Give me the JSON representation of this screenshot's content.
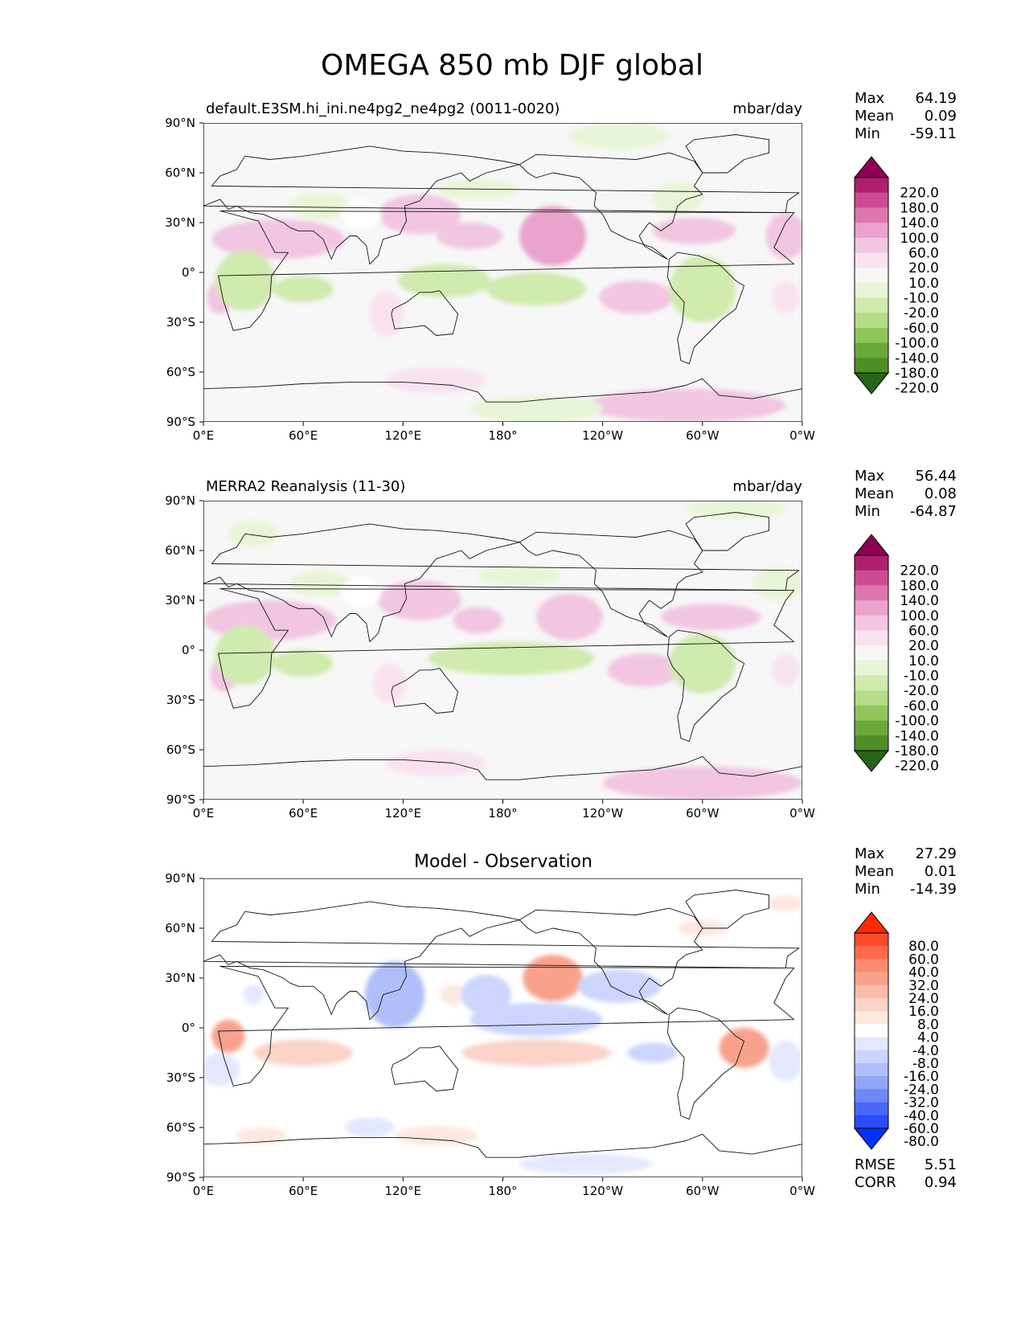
{
  "title": "OMEGA 850 mb DJF global",
  "x_ticks": [
    "0°E",
    "60°E",
    "120°E",
    "180°",
    "120°W",
    "60°W",
    "0°W"
  ],
  "y_ticks": [
    "90°N",
    "60°N",
    "30°N",
    "0°",
    "30°S",
    "60°S",
    "90°S"
  ],
  "panels": [
    {
      "id": "model",
      "left_title": "default.E3SM.hi_ini.ne4pg2_ne4pg2 (0011-0020)",
      "center_title": "",
      "units": "mbar/day",
      "stats": [
        {
          "label": "Max",
          "value": "64.19"
        },
        {
          "label": "Mean",
          "value": "0.09"
        },
        {
          "label": "Min",
          "value": "-59.11"
        }
      ],
      "colorbar": {
        "labels": [
          "220.0",
          "180.0",
          "140.0",
          "100.0",
          "60.0",
          "20.0",
          "10.0",
          "-10.0",
          "-20.0",
          "-60.0",
          "-100.0",
          "-140.0",
          "-180.0",
          "-220.0"
        ],
        "colors": [
          "#8e0152",
          "#b01f6e",
          "#cc4c93",
          "#de77ae",
          "#eaa3cc",
          "#f2c6e2",
          "#f9e2f0",
          "#f7f7f7",
          "#e8f5d6",
          "#cfebae",
          "#b5dd87",
          "#8fc55b",
          "#6aa83b",
          "#4d8f26",
          "#276419"
        ]
      },
      "blobs": [
        {
          "lon": 45,
          "lat": 20,
          "rx": 40,
          "ry": 12,
          "v": "pos2"
        },
        {
          "lon": 130,
          "lat": 35,
          "rx": 25,
          "ry": 12,
          "v": "pos2"
        },
        {
          "lon": 160,
          "lat": 22,
          "rx": 20,
          "ry": 8,
          "v": "pos2"
        },
        {
          "lon": 210,
          "lat": 22,
          "rx": 20,
          "ry": 18,
          "v": "pos3"
        },
        {
          "lon": 295,
          "lat": 25,
          "rx": 25,
          "ry": 8,
          "v": "pos2"
        },
        {
          "lon": 350,
          "lat": 22,
          "rx": 12,
          "ry": 14,
          "v": "pos2"
        },
        {
          "lon": 10,
          "lat": -15,
          "rx": 8,
          "ry": 10,
          "v": "pos2"
        },
        {
          "lon": 110,
          "lat": -25,
          "rx": 10,
          "ry": 14,
          "v": "pos1"
        },
        {
          "lon": 260,
          "lat": -15,
          "rx": 22,
          "ry": 10,
          "v": "pos2"
        },
        {
          "lon": 350,
          "lat": -15,
          "rx": 8,
          "ry": 10,
          "v": "pos1"
        },
        {
          "lon": 290,
          "lat": -80,
          "rx": 60,
          "ry": 10,
          "v": "pos2"
        },
        {
          "lon": 140,
          "lat": -65,
          "rx": 30,
          "ry": 8,
          "v": "pos1"
        },
        {
          "lon": 25,
          "lat": -5,
          "rx": 18,
          "ry": 18,
          "v": "neg2"
        },
        {
          "lon": 60,
          "lat": -10,
          "rx": 18,
          "ry": 8,
          "v": "neg2"
        },
        {
          "lon": 145,
          "lat": -5,
          "rx": 28,
          "ry": 10,
          "v": "neg2"
        },
        {
          "lon": 200,
          "lat": -10,
          "rx": 30,
          "ry": 10,
          "v": "neg2"
        },
        {
          "lon": 300,
          "lat": -10,
          "rx": 20,
          "ry": 20,
          "v": "neg2"
        },
        {
          "lon": 70,
          "lat": 40,
          "rx": 18,
          "ry": 8,
          "v": "neg1"
        },
        {
          "lon": 165,
          "lat": 50,
          "rx": 25,
          "ry": 6,
          "v": "neg1"
        },
        {
          "lon": 285,
          "lat": 45,
          "rx": 15,
          "ry": 10,
          "v": "neg1"
        },
        {
          "lon": 250,
          "lat": 82,
          "rx": 30,
          "ry": 8,
          "v": "neg1"
        },
        {
          "lon": 200,
          "lat": -82,
          "rx": 40,
          "ry": 8,
          "v": "neg1"
        },
        {
          "lon": 95,
          "lat": 35,
          "rx": 12,
          "ry": 9,
          "v": "mask"
        }
      ]
    },
    {
      "id": "obs",
      "left_title": "MERRA2 Reanalysis (11-30)",
      "center_title": "",
      "units": "mbar/day",
      "stats": [
        {
          "label": "Max",
          "value": "56.44"
        },
        {
          "label": "Mean",
          "value": "0.08"
        },
        {
          "label": "Min",
          "value": "-64.87"
        }
      ],
      "colorbar": {
        "labels": [
          "220.0",
          "180.0",
          "140.0",
          "100.0",
          "60.0",
          "20.0",
          "10.0",
          "-10.0",
          "-20.0",
          "-60.0",
          "-100.0",
          "-140.0",
          "-180.0",
          "-220.0"
        ],
        "colors": [
          "#8e0152",
          "#b01f6e",
          "#cc4c93",
          "#de77ae",
          "#eaa3cc",
          "#f2c6e2",
          "#f9e2f0",
          "#f7f7f7",
          "#e8f5d6",
          "#cfebae",
          "#b5dd87",
          "#8fc55b",
          "#6aa83b",
          "#4d8f26",
          "#276419"
        ]
      },
      "blobs": [
        {
          "lon": 40,
          "lat": 18,
          "rx": 40,
          "ry": 12,
          "v": "pos2"
        },
        {
          "lon": 130,
          "lat": 30,
          "rx": 25,
          "ry": 12,
          "v": "pos2"
        },
        {
          "lon": 165,
          "lat": 18,
          "rx": 15,
          "ry": 8,
          "v": "pos2"
        },
        {
          "lon": 220,
          "lat": 20,
          "rx": 20,
          "ry": 14,
          "v": "pos2"
        },
        {
          "lon": 305,
          "lat": 20,
          "rx": 30,
          "ry": 8,
          "v": "pos2"
        },
        {
          "lon": 12,
          "lat": -15,
          "rx": 8,
          "ry": 10,
          "v": "pos2"
        },
        {
          "lon": 112,
          "lat": -20,
          "rx": 10,
          "ry": 12,
          "v": "pos1"
        },
        {
          "lon": 265,
          "lat": -12,
          "rx": 22,
          "ry": 10,
          "v": "pos2"
        },
        {
          "lon": 350,
          "lat": -12,
          "rx": 8,
          "ry": 10,
          "v": "pos1"
        },
        {
          "lon": 300,
          "lat": -80,
          "rx": 60,
          "ry": 10,
          "v": "pos2"
        },
        {
          "lon": 140,
          "lat": -68,
          "rx": 30,
          "ry": 8,
          "v": "pos1"
        },
        {
          "lon": 25,
          "lat": -3,
          "rx": 18,
          "ry": 18,
          "v": "neg2"
        },
        {
          "lon": 60,
          "lat": -8,
          "rx": 18,
          "ry": 8,
          "v": "neg2"
        },
        {
          "lon": 185,
          "lat": -5,
          "rx": 50,
          "ry": 10,
          "v": "neg2"
        },
        {
          "lon": 300,
          "lat": -8,
          "rx": 20,
          "ry": 18,
          "v": "neg2"
        },
        {
          "lon": 70,
          "lat": 40,
          "rx": 18,
          "ry": 8,
          "v": "neg1"
        },
        {
          "lon": 190,
          "lat": 45,
          "rx": 25,
          "ry": 6,
          "v": "neg1"
        },
        {
          "lon": 345,
          "lat": 40,
          "rx": 15,
          "ry": 10,
          "v": "neg1"
        },
        {
          "lon": 320,
          "lat": 85,
          "rx": 30,
          "ry": 6,
          "v": "neg1"
        },
        {
          "lon": 30,
          "lat": 70,
          "rx": 15,
          "ry": 8,
          "v": "neg1"
        },
        {
          "lon": 95,
          "lat": 35,
          "rx": 12,
          "ry": 9,
          "v": "mask"
        }
      ]
    },
    {
      "id": "diff",
      "left_title": "",
      "center_title": "Model - Observation",
      "units": "",
      "stats": [
        {
          "label": "Max",
          "value": "27.29"
        },
        {
          "label": "Mean",
          "value": "0.01"
        },
        {
          "label": "Min",
          "value": "-14.39"
        }
      ],
      "extra_stats": [
        {
          "label": "RMSE",
          "value": "5.51"
        },
        {
          "label": "CORR",
          "value": "0.94"
        }
      ],
      "colorbar": {
        "labels": [
          "80.0",
          "60.0",
          "40.0",
          "32.0",
          "24.0",
          "16.0",
          "8.0",
          "4.0",
          "-4.0",
          "-8.0",
          "-16.0",
          "-24.0",
          "-32.0",
          "-40.0",
          "-60.0",
          "-80.0"
        ],
        "colors": [
          "#ff2a00",
          "#ff4a2a",
          "#ff6a4f",
          "#fb8a70",
          "#f8a28c",
          "#f9bcaa",
          "#fbd3c7",
          "#fde8e0",
          "#ffffff",
          "#e3e8ff",
          "#cbd5ff",
          "#b0bff9",
          "#91a5f7",
          "#6f87f6",
          "#4a68f7",
          "#2a4cfb",
          "#0031ff"
        ]
      },
      "blobs": [
        {
          "lon": 210,
          "lat": 30,
          "rx": 18,
          "ry": 14,
          "v": "pos3"
        },
        {
          "lon": 15,
          "lat": -5,
          "rx": 10,
          "ry": 10,
          "v": "pos3"
        },
        {
          "lon": 60,
          "lat": -15,
          "rx": 30,
          "ry": 8,
          "v": "pos2"
        },
        {
          "lon": 200,
          "lat": -15,
          "rx": 45,
          "ry": 8,
          "v": "pos2"
        },
        {
          "lon": 325,
          "lat": -12,
          "rx": 15,
          "ry": 12,
          "v": "pos3"
        },
        {
          "lon": 150,
          "lat": 20,
          "rx": 8,
          "ry": 6,
          "v": "pos1"
        },
        {
          "lon": 300,
          "lat": 60,
          "rx": 15,
          "ry": 5,
          "v": "pos1"
        },
        {
          "lon": 140,
          "lat": -65,
          "rx": 25,
          "ry": 6,
          "v": "pos1"
        },
        {
          "lon": 35,
          "lat": -65,
          "rx": 15,
          "ry": 5,
          "v": "pos1"
        },
        {
          "lon": 350,
          "lat": 75,
          "rx": 10,
          "ry": 5,
          "v": "pos1"
        },
        {
          "lon": 115,
          "lat": 20,
          "rx": 18,
          "ry": 20,
          "v": "neg3"
        },
        {
          "lon": 200,
          "lat": 5,
          "rx": 40,
          "ry": 10,
          "v": "neg2"
        },
        {
          "lon": 170,
          "lat": 20,
          "rx": 15,
          "ry": 12,
          "v": "neg2"
        },
        {
          "lon": 250,
          "lat": 25,
          "rx": 25,
          "ry": 10,
          "v": "neg2"
        },
        {
          "lon": 270,
          "lat": -15,
          "rx": 15,
          "ry": 6,
          "v": "neg2"
        },
        {
          "lon": 100,
          "lat": -60,
          "rx": 15,
          "ry": 6,
          "v": "neg1"
        },
        {
          "lon": 230,
          "lat": -82,
          "rx": 40,
          "ry": 6,
          "v": "neg1"
        },
        {
          "lon": 10,
          "lat": -25,
          "rx": 12,
          "ry": 10,
          "v": "neg1"
        },
        {
          "lon": 30,
          "lat": 20,
          "rx": 6,
          "ry": 6,
          "v": "neg1"
        },
        {
          "lon": 350,
          "lat": -20,
          "rx": 10,
          "ry": 12,
          "v": "neg1"
        }
      ]
    }
  ]
}
